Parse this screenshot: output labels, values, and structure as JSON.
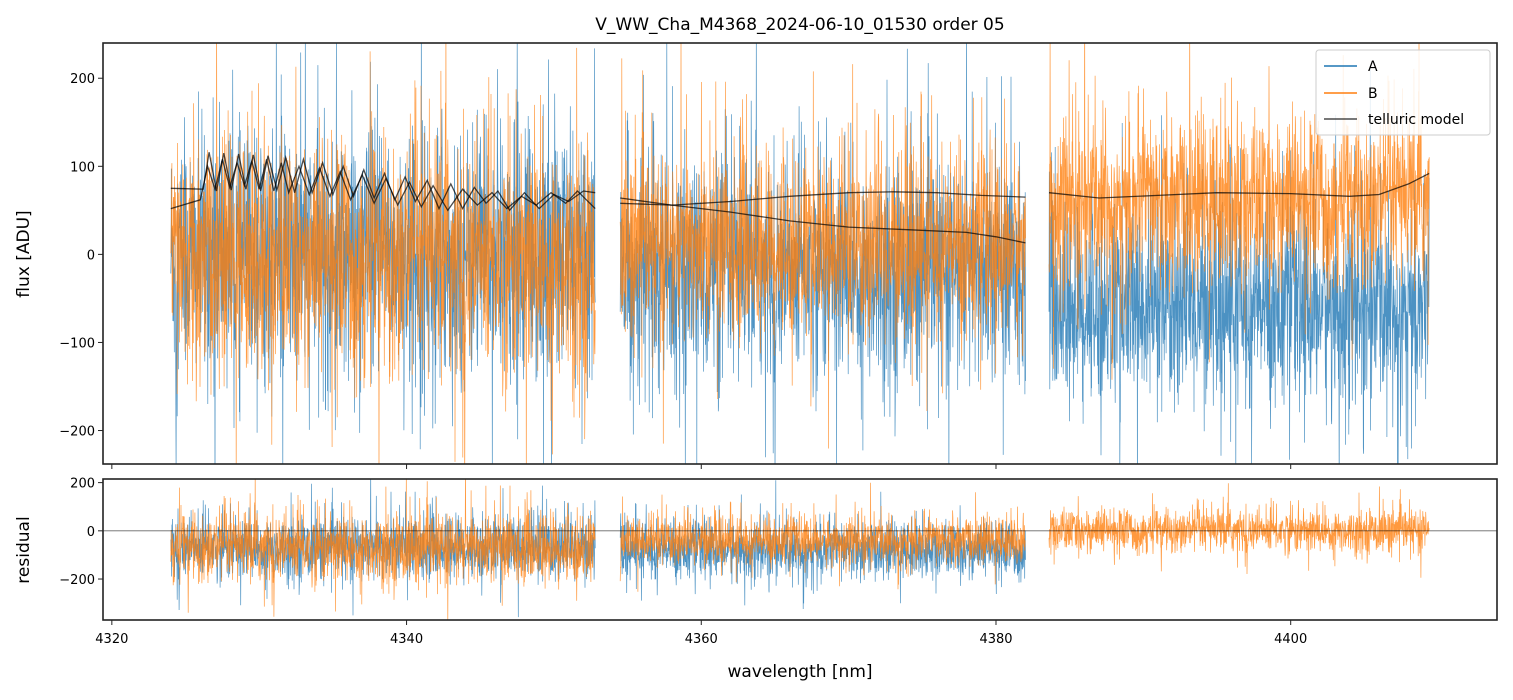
{
  "chart_data": {
    "type": "line",
    "title": "V_WW_Cha_M4368_2024-06-10_01530  order 05",
    "xlabel": "wavelength [nm]",
    "xlim": [
      4319.4,
      4414.0
    ],
    "xticks": [
      4320,
      4340,
      4360,
      4380,
      4400
    ],
    "legend": {
      "placement": "top-right",
      "entries": [
        "A",
        "B",
        "telluric model"
      ]
    },
    "colors": {
      "A": "#1f77b4",
      "B": "#ff7f0e",
      "telluric model": "#000000"
    },
    "segments": [
      [
        4324.0,
        4352.8
      ],
      [
        4354.5,
        4382.0
      ],
      [
        4383.6,
        4409.4
      ]
    ],
    "panels": [
      {
        "ylabel": "flux [ADU]",
        "ylim": [
          -238,
          240
        ],
        "yticks": [
          -200,
          -100,
          0,
          100,
          200
        ],
        "noise_stats": {
          "A": [
            {
              "mean": 0,
              "std": 70
            },
            {
              "mean": -20,
              "std": 62
            },
            {
              "mean": -60,
              "std": 55
            }
          ],
          "B": [
            {
              "mean": -5,
              "std": 68
            },
            {
              "mean": 10,
              "std": 52
            },
            {
              "mean": 60,
              "std": 48
            }
          ]
        },
        "telluric_model": [
          [
            [
              4324,
              75
            ],
            [
              4326.2,
              74
            ],
            [
              4326.6,
              116
            ],
            [
              4327.1,
              72
            ],
            [
              4327.6,
              115
            ],
            [
              4328.1,
              73
            ],
            [
              4328.6,
              114
            ],
            [
              4329.1,
              74
            ],
            [
              4329.6,
              113
            ],
            [
              4330.1,
              72
            ],
            [
              4330.6,
              112
            ],
            [
              4331.2,
              73
            ],
            [
              4331.8,
              110
            ],
            [
              4332.4,
              70
            ],
            [
              4333.0,
              108
            ],
            [
              4333.6,
              70
            ],
            [
              4334.3,
              104
            ],
            [
              4335.0,
              68
            ],
            [
              4335.7,
              100
            ],
            [
              4336.4,
              66
            ],
            [
              4337.1,
              96
            ],
            [
              4337.8,
              64
            ],
            [
              4338.5,
              92
            ],
            [
              4339.2,
              62
            ],
            [
              4339.9,
              88
            ],
            [
              4340.6,
              60
            ],
            [
              4341.4,
              84
            ],
            [
              4342.2,
              52
            ],
            [
              4343.0,
              80
            ],
            [
              4343.8,
              52
            ],
            [
              4344.6,
              76
            ],
            [
              4345.4,
              58
            ],
            [
              4346.2,
              72
            ],
            [
              4347.0,
              50
            ],
            [
              4348.0,
              70
            ],
            [
              4349.0,
              52
            ],
            [
              4350.0,
              68
            ],
            [
              4351.0,
              60
            ],
            [
              4352.0,
              72
            ],
            [
              4352.8,
              70
            ]
          ],
          [
            [
              4324,
              52
            ],
            [
              4326,
              62
            ],
            [
              4326.5,
              100
            ],
            [
              4327.0,
              74
            ],
            [
              4327.5,
              108
            ],
            [
              4328.0,
              76
            ],
            [
              4328.5,
              104
            ],
            [
              4329.0,
              78
            ],
            [
              4329.5,
              106
            ],
            [
              4330.0,
              74
            ],
            [
              4330.5,
              108
            ],
            [
              4331.0,
              72
            ],
            [
              4331.5,
              104
            ],
            [
              4332.0,
              70
            ],
            [
              4332.7,
              100
            ],
            [
              4333.4,
              68
            ],
            [
              4334.1,
              98
            ],
            [
              4334.8,
              66
            ],
            [
              4335.5,
              94
            ],
            [
              4336.2,
              62
            ],
            [
              4337.0,
              90
            ],
            [
              4337.8,
              58
            ],
            [
              4338.6,
              86
            ],
            [
              4339.4,
              56
            ],
            [
              4340.2,
              82
            ],
            [
              4341.0,
              54
            ],
            [
              4341.8,
              78
            ],
            [
              4342.8,
              50
            ],
            [
              4343.8,
              74
            ],
            [
              4344.8,
              56
            ],
            [
              4345.8,
              70
            ],
            [
              4346.8,
              52
            ],
            [
              4347.8,
              66
            ],
            [
              4348.8,
              56
            ],
            [
              4349.8,
              70
            ],
            [
              4350.8,
              58
            ],
            [
              4351.6,
              72
            ],
            [
              4352.8,
              52
            ]
          ],
          [
            [
              4354.5,
              58
            ],
            [
              4358,
              56
            ],
            [
              4362,
              60
            ],
            [
              4366,
              66
            ],
            [
              4370,
              70
            ],
            [
              4373,
              71
            ],
            [
              4376,
              70
            ],
            [
              4379,
              67
            ],
            [
              4382,
              65
            ]
          ],
          [
            [
              4354.5,
              64
            ],
            [
              4358,
              56
            ],
            [
              4362,
              48
            ],
            [
              4366,
              38
            ],
            [
              4370,
              31
            ],
            [
              4374,
              28
            ],
            [
              4378,
              25
            ],
            [
              4380,
              20
            ],
            [
              4382,
              13
            ]
          ],
          [
            [
              4383.6,
              70
            ],
            [
              4387,
              64
            ],
            [
              4391,
              67
            ],
            [
              4395,
              70
            ],
            [
              4400,
              69
            ],
            [
              4404,
              66
            ],
            [
              4406,
              68
            ],
            [
              4408,
              80
            ],
            [
              4409.4,
              92
            ]
          ]
        ]
      },
      {
        "ylabel": "residual",
        "ylim": [
          -370,
          215
        ],
        "yticks": [
          -200,
          0,
          200
        ],
        "zero_line": 0,
        "noise_stats": {
          "A": [
            {
              "mean": -70,
              "std": 65
            },
            {
              "mean": -80,
              "std": 58
            },
            null
          ],
          "B": [
            {
              "mean": -70,
              "std": 72
            },
            {
              "mean": -40,
              "std": 48
            },
            {
              "mean": 0,
              "std": 45
            }
          ]
        }
      }
    ]
  }
}
